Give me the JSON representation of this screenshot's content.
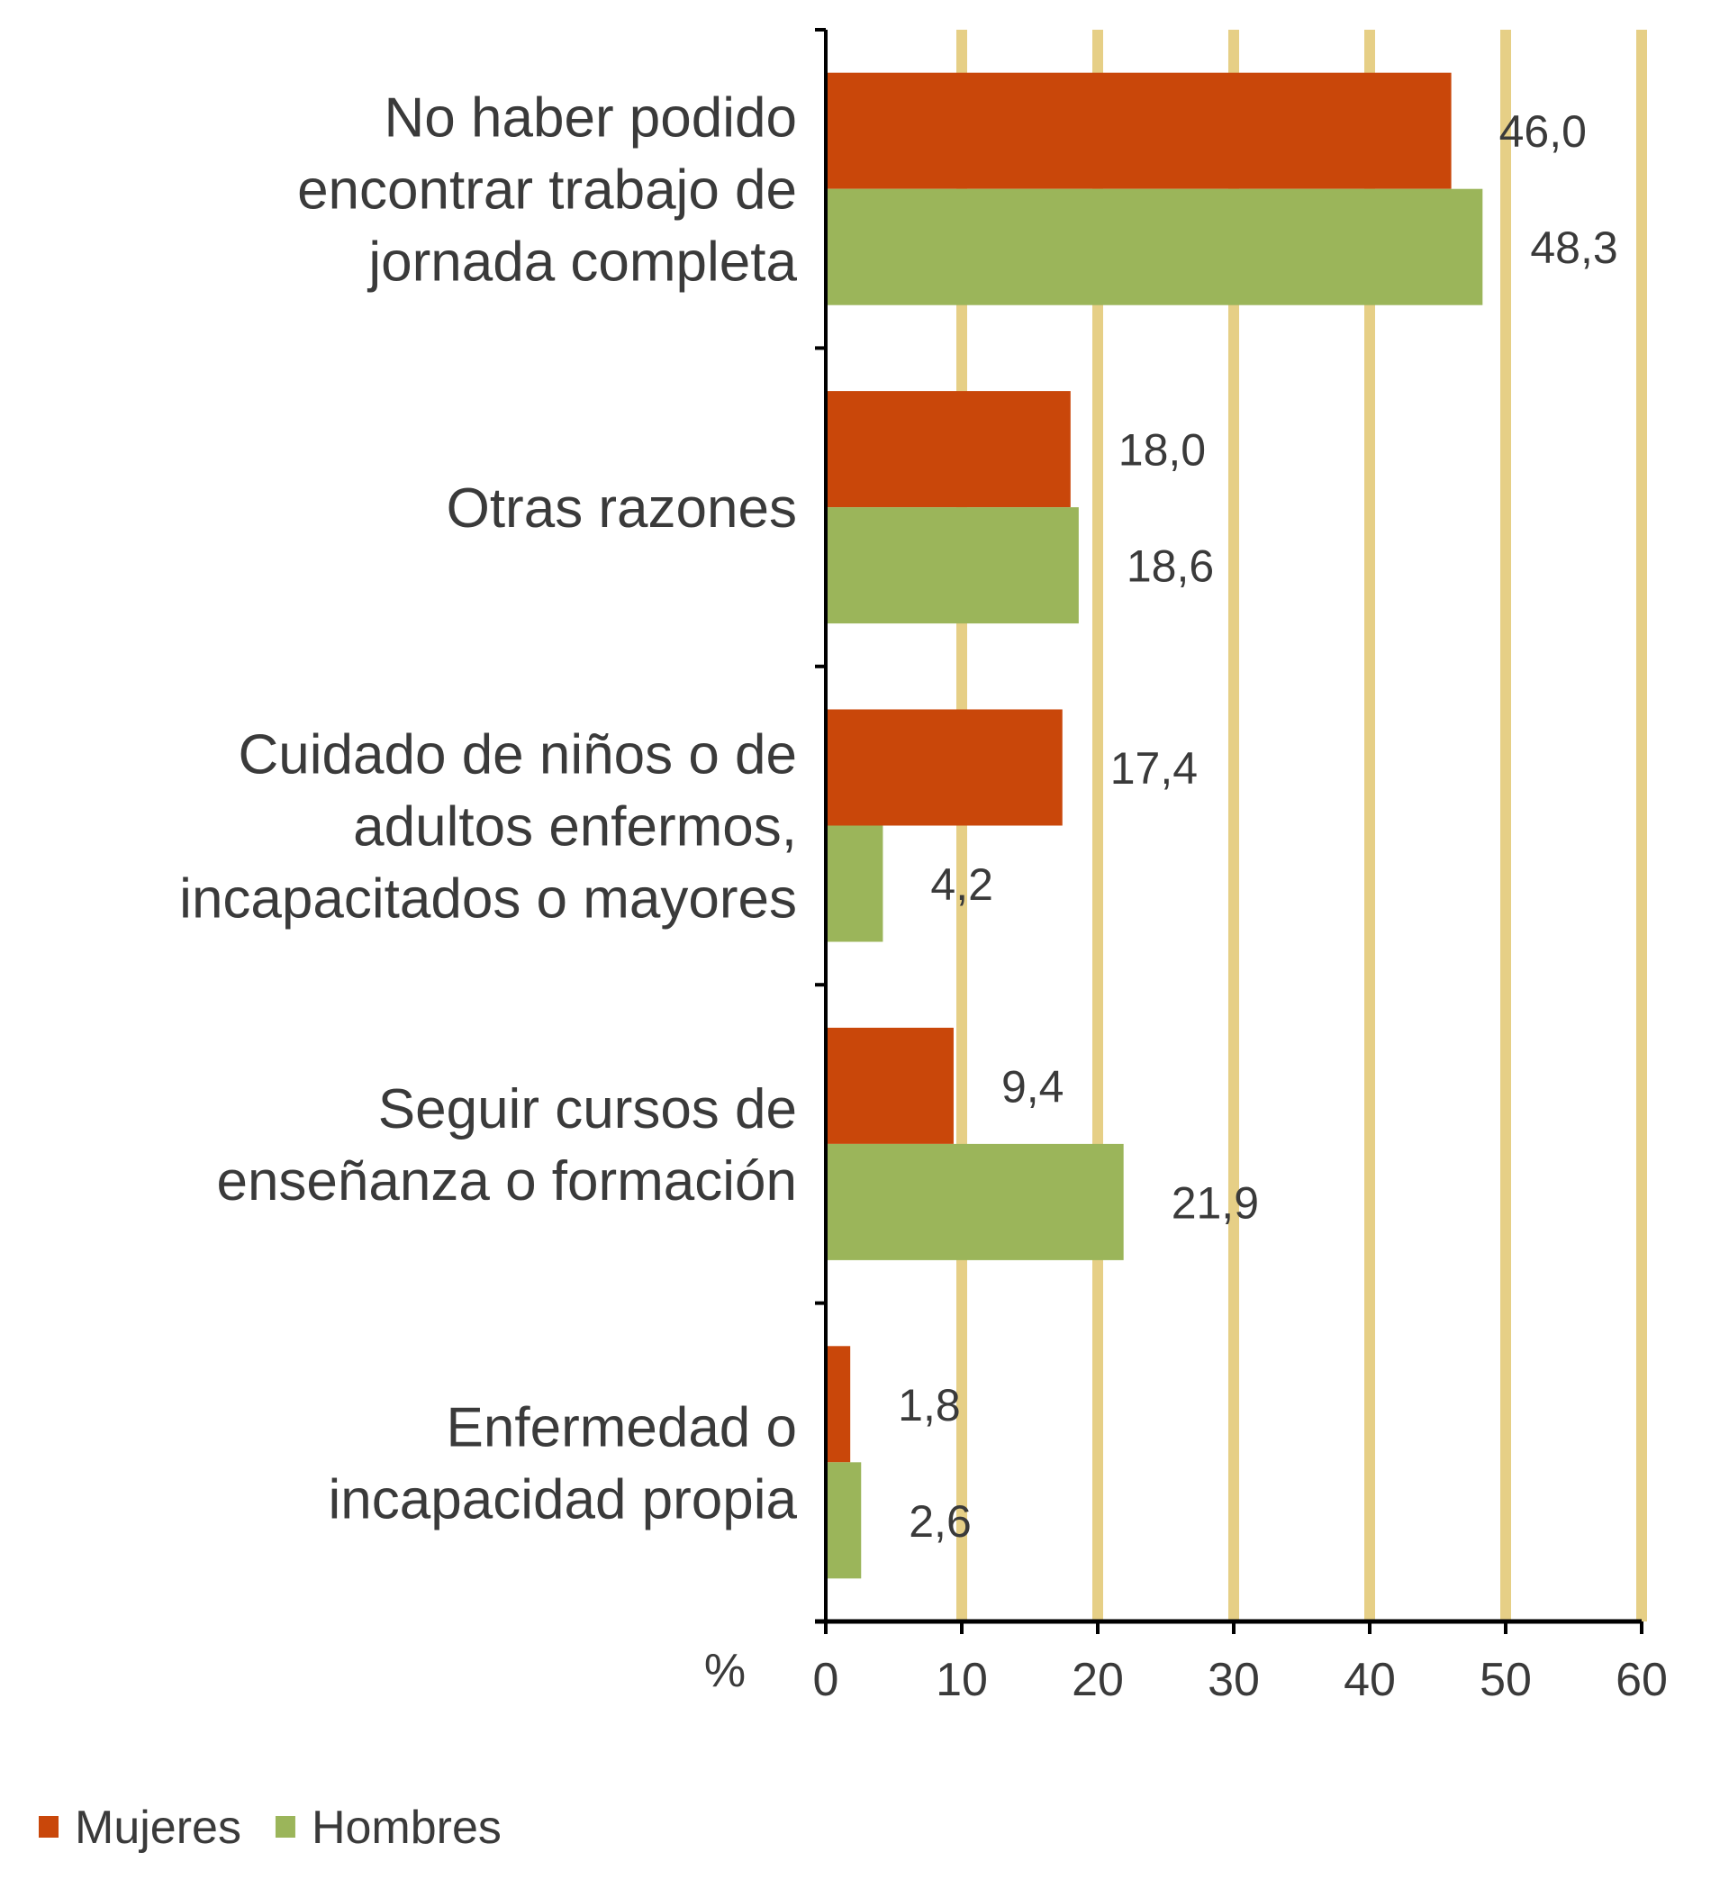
{
  "chart_data": {
    "type": "bar",
    "orientation": "horizontal",
    "categories": [
      [
        "No haber podido",
        "encontrar trabajo de",
        "jornada completa"
      ],
      [
        "Otras razones"
      ],
      [
        "Cuidado de niños o de",
        "adultos enfermos,",
        "incapacitados o mayores"
      ],
      [
        "Seguir cursos de",
        "enseñanza o formación"
      ],
      [
        "Enfermedad o",
        "incapacidad propia"
      ]
    ],
    "series": [
      {
        "name": "Mujeres",
        "color": "#C9470A",
        "values": [
          46.0,
          18.0,
          17.4,
          9.4,
          1.8
        ],
        "labels": [
          "46,0",
          "18,0",
          "17,4",
          "9,4",
          "1,8"
        ]
      },
      {
        "name": "Hombres",
        "color": "#9BB55A",
        "values": [
          48.3,
          18.6,
          4.2,
          21.9,
          2.6
        ],
        "labels": [
          "48,3",
          "18,6",
          "4,2",
          "21,9",
          "2,6"
        ]
      }
    ],
    "xlabel": "%",
    "xlim": [
      0,
      60
    ],
    "xticks": [
      "0",
      "10",
      "20",
      "30",
      "40",
      "50",
      "60"
    ],
    "grid": {
      "vertical": true,
      "color": "#E6CF86"
    },
    "legend_position": "bottom-left"
  }
}
